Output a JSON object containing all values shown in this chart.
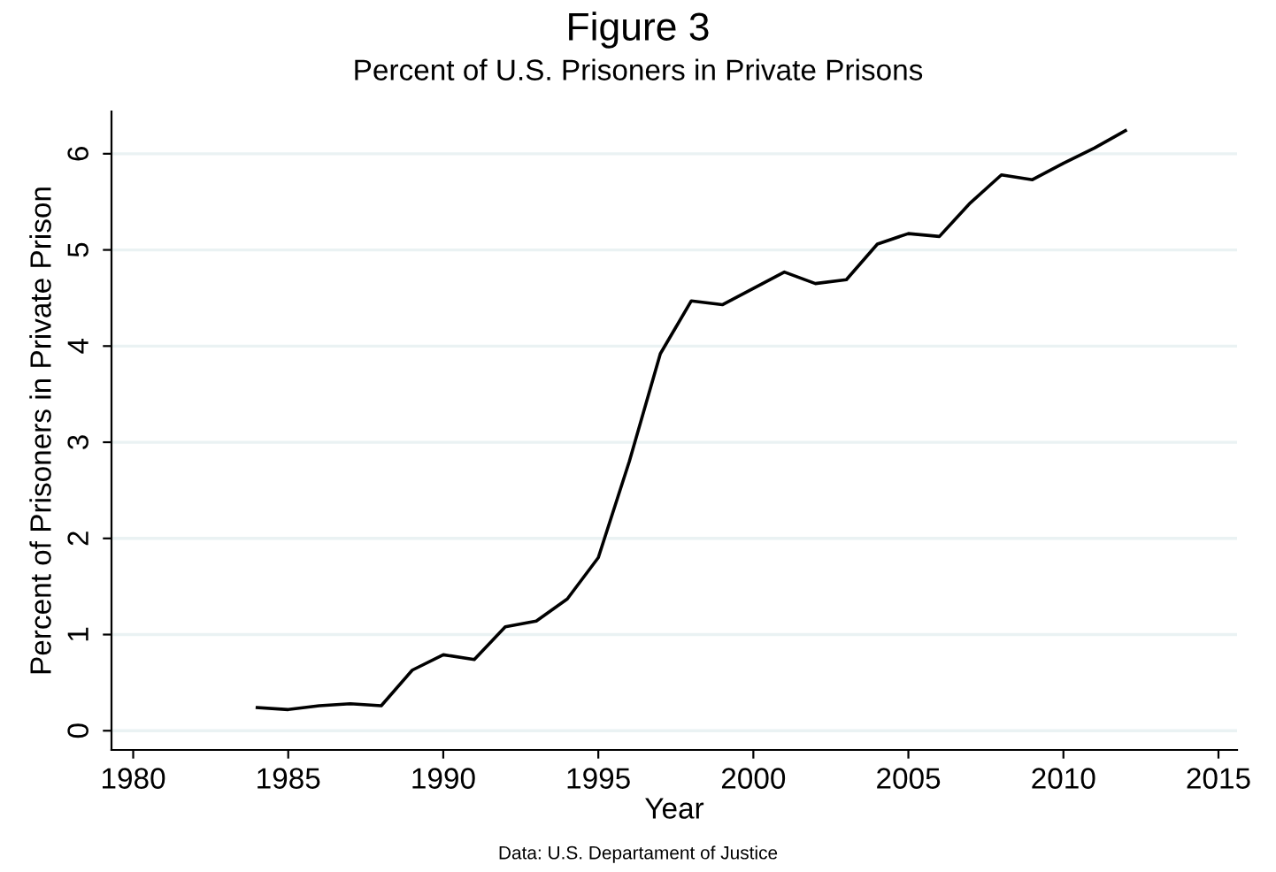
{
  "chart_data": {
    "type": "line",
    "title": "Figure 3",
    "subtitle": "Percent of U.S. Prisoners in Private Prisons",
    "xlabel": "Year",
    "ylabel": "Percent of Prisoners in Private Prison",
    "annotations": [
      "Data: U.S. Departament of Justice"
    ],
    "x": [
      1984,
      1985,
      1986,
      1987,
      1988,
      1989,
      1990,
      1991,
      1992,
      1993,
      1994,
      1995,
      1996,
      1997,
      1998,
      1999,
      2000,
      2001,
      2002,
      2003,
      2004,
      2005,
      2006,
      2007,
      2008,
      2009,
      2010,
      2011,
      2012
    ],
    "series": [
      {
        "color": "#000000",
        "values": [
          0.24,
          0.22,
          0.26,
          0.28,
          0.26,
          0.63,
          0.79,
          0.74,
          1.08,
          1.14,
          1.37,
          1.8,
          2.8,
          3.92,
          4.47,
          4.43,
          4.6,
          4.77,
          4.65,
          4.69,
          5.06,
          5.17,
          5.14,
          5.49,
          5.78,
          5.73,
          5.9,
          6.06,
          6.24
        ]
      }
    ],
    "xlim": [
      1979.3,
      2015.6
    ],
    "xticks": [
      1980,
      1985,
      1990,
      1995,
      2000,
      2005,
      2010,
      2015
    ],
    "ylim": [
      -0.2,
      6.44
    ],
    "yticks": [
      0,
      1,
      2,
      3,
      4,
      5,
      6
    ],
    "grid": "y",
    "marker": "none",
    "line_style": "solid"
  }
}
